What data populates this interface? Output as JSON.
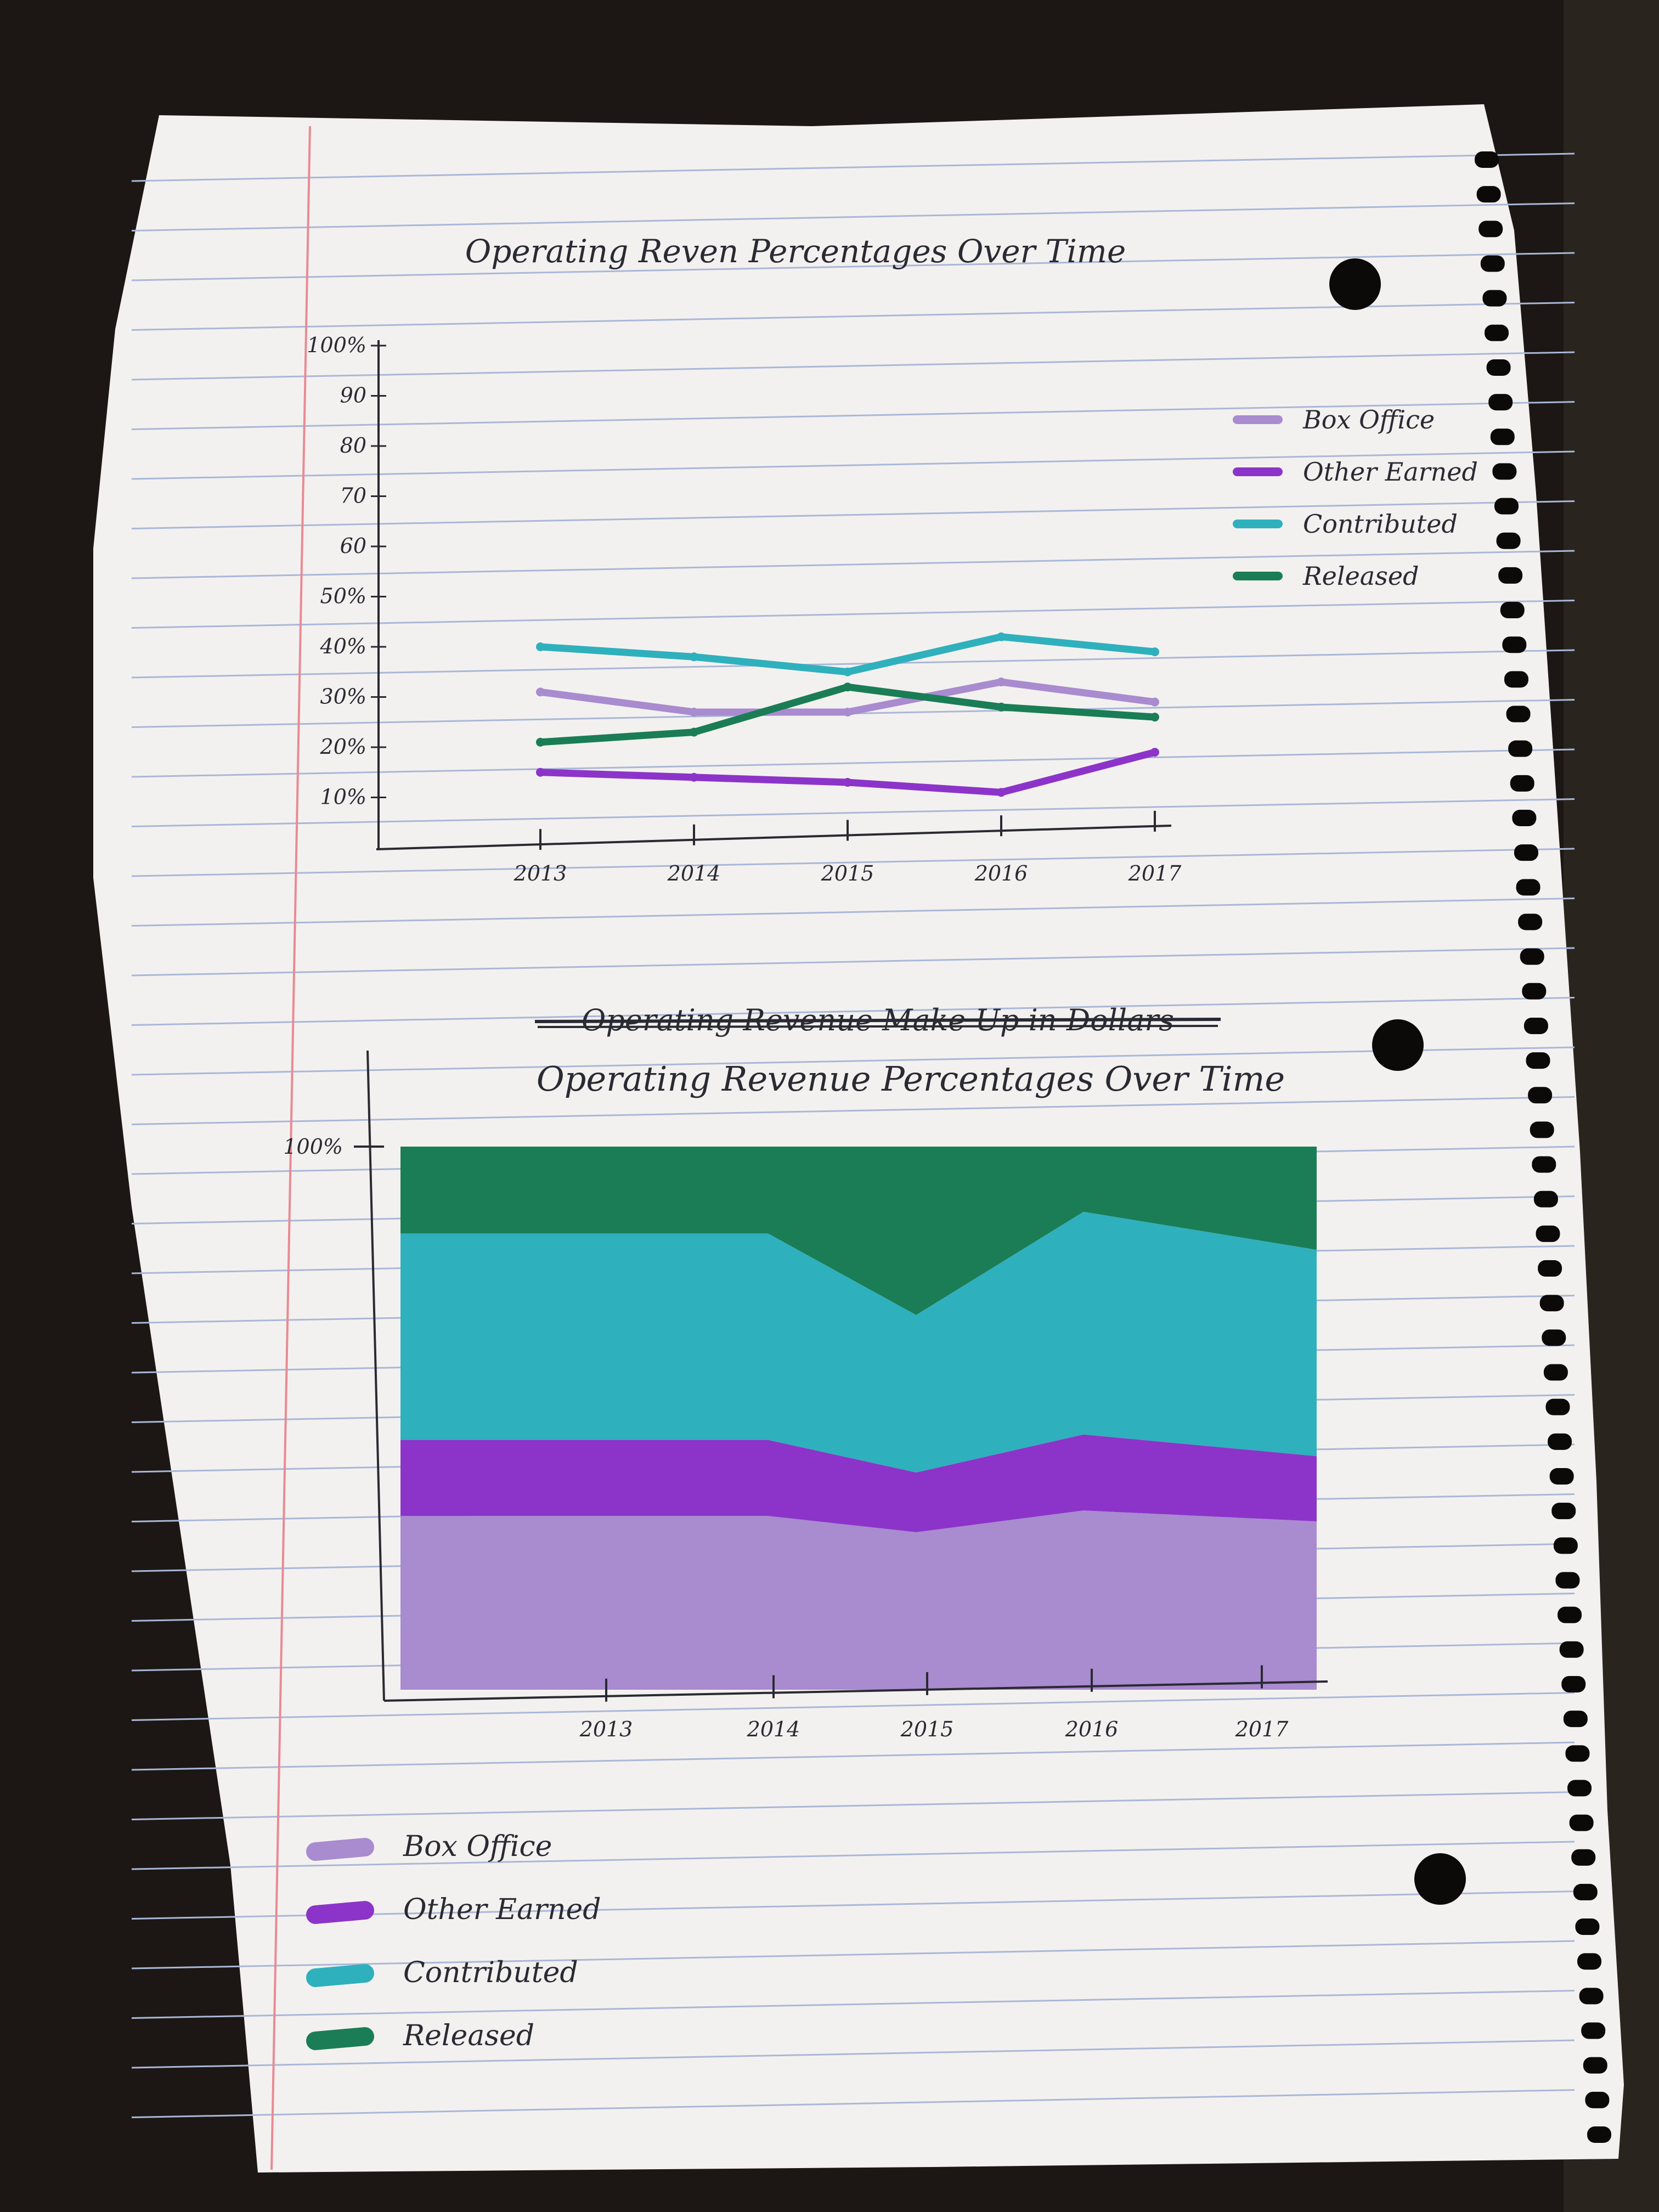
{
  "colors": {
    "box_office": "#a98bcf",
    "other_earned": "#8c34c9",
    "contributed": "#2fb0bd",
    "released": "#1a7d55"
  },
  "chart_data": [
    {
      "type": "line",
      "title": "Operating Reven Percentages Over Time",
      "xlabel": "",
      "ylabel": "",
      "categories": [
        "2013",
        "2014",
        "2015",
        "2016",
        "2017"
      ],
      "y_tick_labels": [
        "10%",
        "20%",
        "30%",
        "40%",
        "50%",
        "60",
        "70",
        "80",
        "90",
        "100%"
      ],
      "ylim": [
        0,
        100
      ],
      "grid": false,
      "legend": "right",
      "series": [
        {
          "name": "Box Office",
          "color_key": "box_office",
          "values": [
            31,
            27,
            27,
            33,
            29
          ]
        },
        {
          "name": "Other Earned",
          "color_key": "other_earned",
          "values": [
            15,
            14,
            13,
            11,
            19
          ]
        },
        {
          "name": "Contributed",
          "color_key": "contributed",
          "values": [
            40,
            38,
            35,
            42,
            39
          ]
        },
        {
          "name": "Released",
          "color_key": "released",
          "values": [
            21,
            23,
            32,
            28,
            26
          ]
        }
      ]
    },
    {
      "type": "area",
      "stacked": true,
      "title": "Operating Revenue Percentages Over Time",
      "struck_title": "Operating Revenue Make Up in Dollars",
      "xlabel": "",
      "ylabel": "",
      "categories": [
        "2013",
        "2014",
        "2015",
        "2016",
        "2017"
      ],
      "y_tick_labels": [
        "100%"
      ],
      "ylim": [
        0,
        100
      ],
      "grid": false,
      "legend": "bottom-left",
      "series": [
        {
          "name": "Box Office",
          "color_key": "box_office",
          "values": [
            32,
            32,
            29,
            33,
            31
          ]
        },
        {
          "name": "Other Earned",
          "color_key": "other_earned",
          "values": [
            14,
            14,
            11,
            14,
            12
          ]
        },
        {
          "name": "Contributed",
          "color_key": "contributed",
          "values": [
            38,
            38,
            29,
            41,
            38
          ]
        },
        {
          "name": "Released",
          "color_key": "released",
          "values": [
            16,
            16,
            31,
            12,
            19
          ]
        }
      ]
    }
  ]
}
